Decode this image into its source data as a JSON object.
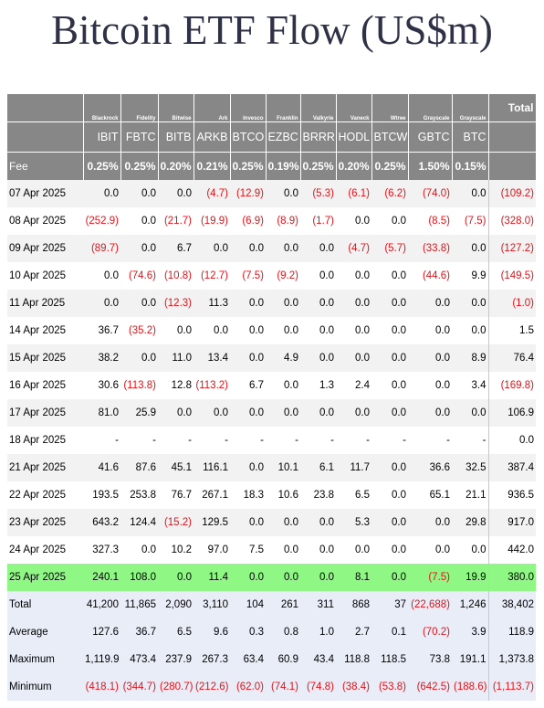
{
  "title": "Bitcoin ETF Flow (US$m)",
  "issuers": [
    "Blackrock",
    "Fidelity",
    "Bitwise",
    "Ark",
    "Invesco",
    "Franklin",
    "Valkyrie",
    "Vaneck",
    "Wtree",
    "Grayscale",
    "Grayscale"
  ],
  "total_label": "Total",
  "tickers": [
    "IBIT",
    "FBTC",
    "BITB",
    "ARKB",
    "BTCO",
    "EZBC",
    "BRRR",
    "HODL",
    "BTCW",
    "GBTC",
    "BTC"
  ],
  "fee": {
    "label": "Fee",
    "values": [
      "0.25%",
      "0.25%",
      "0.20%",
      "0.21%",
      "0.25%",
      "0.19%",
      "0.25%",
      "0.20%",
      "0.25%",
      "1.50%",
      "0.15%"
    ]
  },
  "rows": [
    {
      "date": "07 Apr 2025",
      "values": [
        "0.0",
        "0.0",
        "0.0",
        "(4.7)",
        "(12.9)",
        "0.0",
        "(5.3)",
        "(6.1)",
        "(6.2)",
        "(74.0)",
        "0.0"
      ],
      "total": "(109.2)"
    },
    {
      "date": "08 Apr 2025",
      "values": [
        "(252.9)",
        "0.0",
        "(21.7)",
        "(19.9)",
        "(6.9)",
        "(8.9)",
        "(1.7)",
        "0.0",
        "0.0",
        "(8.5)",
        "(7.5)"
      ],
      "total": "(328.0)"
    },
    {
      "date": "09 Apr 2025",
      "values": [
        "(89.7)",
        "0.0",
        "6.7",
        "0.0",
        "0.0",
        "0.0",
        "0.0",
        "(4.7)",
        "(5.7)",
        "(33.8)",
        "0.0"
      ],
      "total": "(127.2)"
    },
    {
      "date": "10 Apr 2025",
      "values": [
        "0.0",
        "(74.6)",
        "(10.8)",
        "(12.7)",
        "(7.5)",
        "(9.2)",
        "0.0",
        "0.0",
        "0.0",
        "(44.6)",
        "9.9"
      ],
      "total": "(149.5)"
    },
    {
      "date": "11 Apr 2025",
      "values": [
        "0.0",
        "0.0",
        "(12.3)",
        "11.3",
        "0.0",
        "0.0",
        "0.0",
        "0.0",
        "0.0",
        "0.0",
        "0.0"
      ],
      "total": "(1.0)"
    },
    {
      "date": "14 Apr 2025",
      "values": [
        "36.7",
        "(35.2)",
        "0.0",
        "0.0",
        "0.0",
        "0.0",
        "0.0",
        "0.0",
        "0.0",
        "0.0",
        "0.0"
      ],
      "total": "1.5"
    },
    {
      "date": "15 Apr 2025",
      "values": [
        "38.2",
        "0.0",
        "11.0",
        "13.4",
        "0.0",
        "4.9",
        "0.0",
        "0.0",
        "0.0",
        "0.0",
        "8.9"
      ],
      "total": "76.4"
    },
    {
      "date": "16 Apr 2025",
      "values": [
        "30.6",
        "(113.8)",
        "12.8",
        "(113.2)",
        "6.7",
        "0.0",
        "1.3",
        "2.4",
        "0.0",
        "0.0",
        "3.4"
      ],
      "total": "(169.8)"
    },
    {
      "date": "17 Apr 2025",
      "values": [
        "81.0",
        "25.9",
        "0.0",
        "0.0",
        "0.0",
        "0.0",
        "0.0",
        "0.0",
        "0.0",
        "0.0",
        "0.0"
      ],
      "total": "106.9"
    },
    {
      "date": "18 Apr 2025",
      "values": [
        "-",
        "-",
        "-",
        "-",
        "-",
        "-",
        "-",
        "-",
        "-",
        "-",
        "-"
      ],
      "total": "0.0"
    },
    {
      "date": "21 Apr 2025",
      "values": [
        "41.6",
        "87.6",
        "45.1",
        "116.1",
        "0.0",
        "10.1",
        "6.1",
        "11.7",
        "0.0",
        "36.6",
        "32.5"
      ],
      "total": "387.4"
    },
    {
      "date": "22 Apr 2025",
      "values": [
        "193.5",
        "253.8",
        "76.7",
        "267.1",
        "18.3",
        "10.6",
        "23.8",
        "6.5",
        "0.0",
        "65.1",
        "21.1"
      ],
      "total": "936.5"
    },
    {
      "date": "23 Apr 2025",
      "values": [
        "643.2",
        "124.4",
        "(15.2)",
        "129.5",
        "0.0",
        "0.0",
        "0.0",
        "5.3",
        "0.0",
        "0.0",
        "29.8"
      ],
      "total": "917.0"
    },
    {
      "date": "24 Apr 2025",
      "values": [
        "327.3",
        "0.0",
        "10.2",
        "97.0",
        "7.5",
        "0.0",
        "0.0",
        "0.0",
        "0.0",
        "0.0",
        "0.0"
      ],
      "total": "442.0"
    },
    {
      "date": "25 Apr 2025",
      "values": [
        "240.1",
        "108.0",
        "0.0",
        "11.4",
        "0.0",
        "0.0",
        "0.0",
        "8.1",
        "0.0",
        "(7.5)",
        "19.9"
      ],
      "total": "380.0",
      "highlight": true
    }
  ],
  "summary": [
    {
      "label": "Total",
      "values": [
        "41,200",
        "11,865",
        "2,090",
        "3,110",
        "104",
        "261",
        "311",
        "868",
        "37",
        "(22,688)",
        "1,246"
      ],
      "total": "38,402"
    },
    {
      "label": "Average",
      "values": [
        "127.6",
        "36.7",
        "6.5",
        "9.6",
        "0.3",
        "0.8",
        "1.0",
        "2.7",
        "0.1",
        "(70.2)",
        "3.9"
      ],
      "total": "118.9"
    },
    {
      "label": "Maximum",
      "values": [
        "1,119.9",
        "473.4",
        "237.9",
        "267.3",
        "63.4",
        "60.9",
        "43.4",
        "118.8",
        "118.5",
        "73.8",
        "191.1"
      ],
      "total": "1,373.8"
    },
    {
      "label": "Minimum",
      "values": [
        "(418.1)",
        "(344.7)",
        "(280.7)",
        "(212.6)",
        "(62.0)",
        "(74.1)",
        "(74.8)",
        "(38.4)",
        "(53.8)",
        "(642.5)",
        "(188.6)"
      ],
      "total": "(1,113.7)"
    }
  ],
  "colors": {
    "header_bg": "#878787",
    "highlight": "#8ff884",
    "negative": "#e0151b",
    "title": "#2f3146",
    "summary_bg": "#e8edf8"
  }
}
